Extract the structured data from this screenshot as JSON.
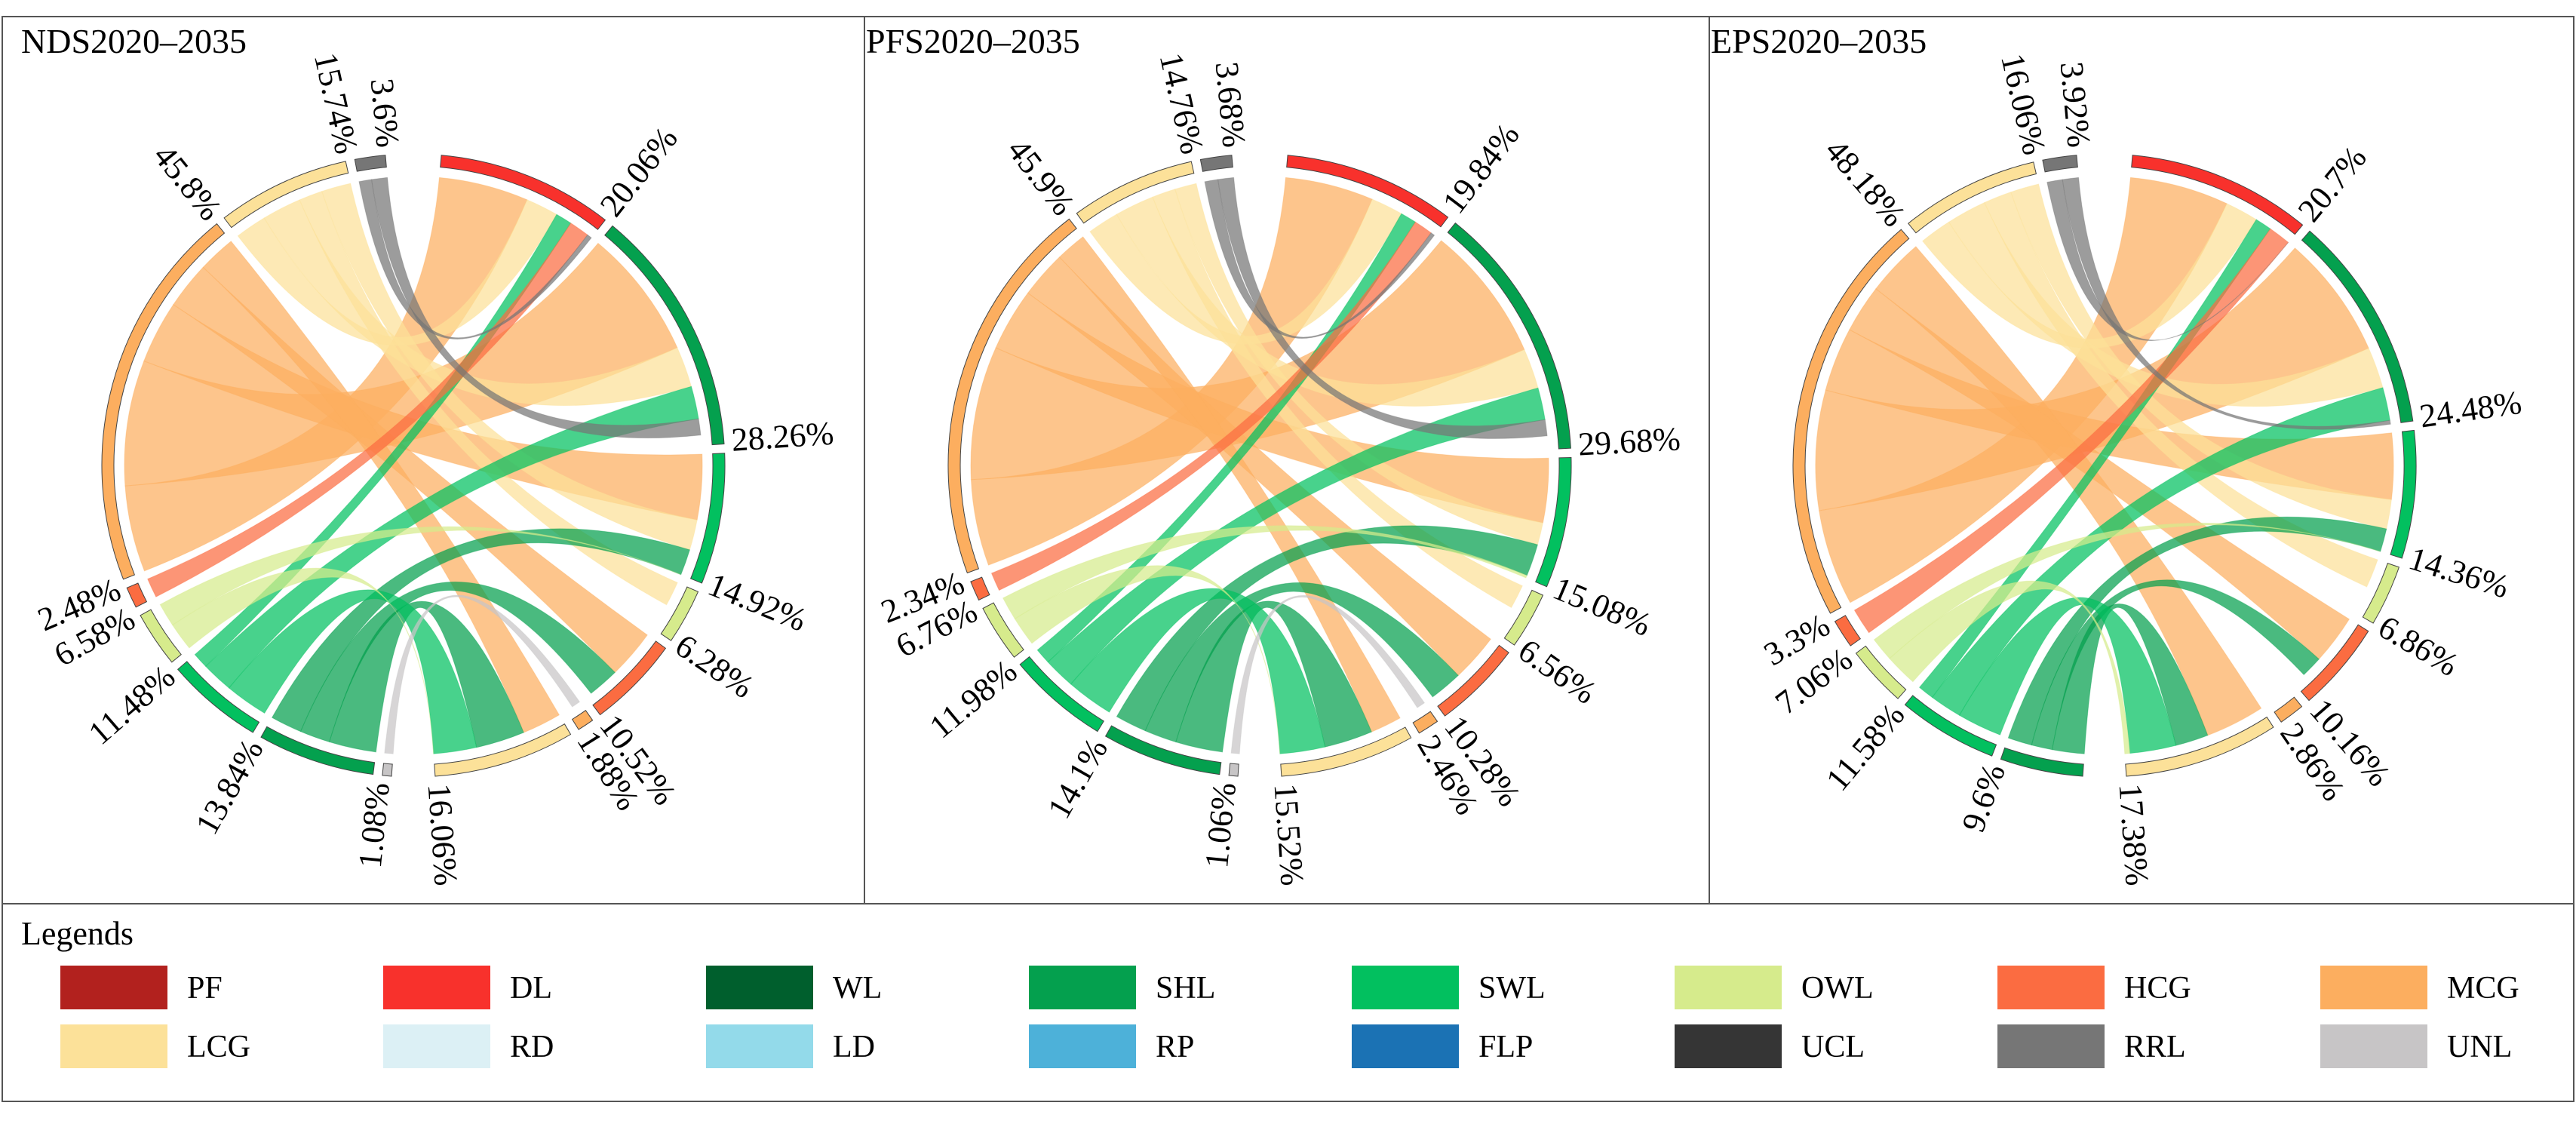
{
  "legend_title": "Legends",
  "colors": {
    "PF": "#B2211E",
    "DL": "#F8312C",
    "WL": "#005F2D",
    "SHL": "#04A04E",
    "SWL": "#02C05F",
    "OWL": "#D6EB8C",
    "HCG": "#FB6C41",
    "MCG": "#FCAE5F",
    "LCG": "#FCE199",
    "RD": "#DCF0F5",
    "LD": "#93DAEA",
    "RP": "#4DB1D9",
    "FLP": "#1B72B4",
    "UCL": "#353535",
    "RRL": "#767676",
    "UNL": "#C7C5C6"
  },
  "legend": [
    {
      "code": "PF",
      "label": "PF"
    },
    {
      "code": "DL",
      "label": "DL"
    },
    {
      "code": "WL",
      "label": "WL"
    },
    {
      "code": "SHL",
      "label": "SHL"
    },
    {
      "code": "SWL",
      "label": "SWL"
    },
    {
      "code": "OWL",
      "label": "OWL"
    },
    {
      "code": "HCG",
      "label": "HCG"
    },
    {
      "code": "MCG",
      "label": "MCG"
    },
    {
      "code": "LCG",
      "label": "LCG"
    },
    {
      "code": "RD",
      "label": "RD"
    },
    {
      "code": "LD",
      "label": "LD"
    },
    {
      "code": "RP",
      "label": "RP"
    },
    {
      "code": "FLP",
      "label": "FLP"
    },
    {
      "code": "UCL",
      "label": "UCL"
    },
    {
      "code": "RRL",
      "label": "RRL"
    },
    {
      "code": "UNL",
      "label": "UNL"
    }
  ],
  "chart_data": [
    {
      "type": "chord",
      "title": "NDS2020–2035",
      "sectors": [
        {
          "name": "DL",
          "side": "right",
          "value": 20.06,
          "label": "20.06%"
        },
        {
          "name": "SHL",
          "side": "right",
          "value": 28.26,
          "label": "28.26%"
        },
        {
          "name": "SWL",
          "side": "right",
          "value": 14.92,
          "label": "14.92%"
        },
        {
          "name": "OWL",
          "side": "right",
          "value": 6.28,
          "label": "6.28%"
        },
        {
          "name": "HCG",
          "side": "right",
          "value": 10.52,
          "label": "10.52%"
        },
        {
          "name": "MCG",
          "side": "right",
          "value": 1.88,
          "label": "1.88%"
        },
        {
          "name": "LCG",
          "side": "right",
          "value": 16.06,
          "label": "16.06%"
        },
        {
          "name": "UNL",
          "side": "left",
          "value": 1.08,
          "label": "1.08%"
        },
        {
          "name": "SHL",
          "side": "left",
          "value": 13.84,
          "label": "13.84%"
        },
        {
          "name": "SWL",
          "side": "left",
          "value": 11.48,
          "label": "11.48%"
        },
        {
          "name": "OWL",
          "side": "left",
          "value": 6.58,
          "label": "6.58%"
        },
        {
          "name": "HCG",
          "side": "left",
          "value": 2.48,
          "label": "2.48%"
        },
        {
          "name": "MCG",
          "side": "left",
          "value": 45.8,
          "label": "45.8%"
        },
        {
          "name": "LCG",
          "side": "left",
          "value": 15.74,
          "label": "15.74%"
        },
        {
          "name": "RRL",
          "side": "left",
          "value": 3.6,
          "label": "3.6%"
        }
      ],
      "flows": [
        {
          "from": "MCG",
          "to": "DL",
          "value": 11
        },
        {
          "from": "MCG",
          "to": "SHL",
          "value": 16
        },
        {
          "from": "MCG",
          "to": "SWL",
          "value": 8
        },
        {
          "from": "MCG",
          "to": "HCG",
          "value": 6
        },
        {
          "from": "MCG",
          "to": "LCG",
          "value": 4.8
        },
        {
          "from": "LCG",
          "to": "DL",
          "value": 4
        },
        {
          "from": "LCG",
          "to": "SHL",
          "value": 5
        },
        {
          "from": "LCG",
          "to": "OWL",
          "value": 3
        },
        {
          "from": "LCG",
          "to": "SWL",
          "value": 3.74
        },
        {
          "from": "SHL",
          "to": "LCG",
          "value": 6
        },
        {
          "from": "SHL",
          "to": "HCG",
          "value": 3.84
        },
        {
          "from": "SHL",
          "to": "SWL",
          "value": 4
        },
        {
          "from": "SWL",
          "to": "LCG",
          "value": 5.48
        },
        {
          "from": "SWL",
          "to": "SHL",
          "value": 4
        },
        {
          "from": "SWL",
          "to": "DL",
          "value": 2
        },
        {
          "from": "OWL",
          "to": "LCG",
          "value": 3.58
        },
        {
          "from": "OWL",
          "to": "SWL",
          "value": 3
        },
        {
          "from": "HCG",
          "to": "DL",
          "value": 2.48
        },
        {
          "from": "RRL",
          "to": "DL",
          "value": 1.6
        },
        {
          "from": "RRL",
          "to": "SHL",
          "value": 2
        },
        {
          "from": "UNL",
          "to": "MCG",
          "value": 1.08
        }
      ]
    },
    {
      "type": "chord",
      "title": "PFS2020–2035",
      "sectors": [
        {
          "name": "DL",
          "side": "right",
          "value": 19.84,
          "label": "19.84%"
        },
        {
          "name": "SHL",
          "side": "right",
          "value": 29.68,
          "label": "29.68%"
        },
        {
          "name": "SWL",
          "side": "right",
          "value": 15.08,
          "label": "15.08%"
        },
        {
          "name": "OWL",
          "side": "right",
          "value": 6.56,
          "label": "6.56%"
        },
        {
          "name": "HCG",
          "side": "right",
          "value": 10.28,
          "label": "10.28%"
        },
        {
          "name": "MCG",
          "side": "right",
          "value": 2.46,
          "label": "2.46%"
        },
        {
          "name": "LCG",
          "side": "right",
          "value": 15.52,
          "label": "15.52%"
        },
        {
          "name": "UNL",
          "side": "left",
          "value": 1.06,
          "label": "1.06%"
        },
        {
          "name": "SHL",
          "side": "left",
          "value": 14.1,
          "label": "14.1%"
        },
        {
          "name": "SWL",
          "side": "left",
          "value": 11.98,
          "label": "11.98%"
        },
        {
          "name": "OWL",
          "side": "left",
          "value": 6.76,
          "label": "6.76%"
        },
        {
          "name": "HCG",
          "side": "left",
          "value": 2.34,
          "label": "2.34%"
        },
        {
          "name": "MCG",
          "side": "left",
          "value": 45.9,
          "label": "45.9%"
        },
        {
          "name": "LCG",
          "side": "left",
          "value": 14.76,
          "label": "14.76%"
        },
        {
          "name": "RRL",
          "side": "left",
          "value": 3.68,
          "label": "3.68%"
        }
      ],
      "flows": [
        {
          "from": "MCG",
          "to": "DL",
          "value": 11
        },
        {
          "from": "MCG",
          "to": "SHL",
          "value": 17
        },
        {
          "from": "MCG",
          "to": "SWL",
          "value": 8
        },
        {
          "from": "MCG",
          "to": "HCG",
          "value": 6
        },
        {
          "from": "MCG",
          "to": "LCG",
          "value": 3.9
        },
        {
          "from": "LCG",
          "to": "DL",
          "value": 4
        },
        {
          "from": "LCG",
          "to": "SHL",
          "value": 5
        },
        {
          "from": "LCG",
          "to": "OWL",
          "value": 3
        },
        {
          "from": "LCG",
          "to": "SWL",
          "value": 2.76
        },
        {
          "from": "SHL",
          "to": "LCG",
          "value": 6
        },
        {
          "from": "SHL",
          "to": "HCG",
          "value": 4.1
        },
        {
          "from": "SHL",
          "to": "SWL",
          "value": 4
        },
        {
          "from": "SWL",
          "to": "LCG",
          "value": 5.98
        },
        {
          "from": "SWL",
          "to": "SHL",
          "value": 4
        },
        {
          "from": "SWL",
          "to": "DL",
          "value": 2
        },
        {
          "from": "OWL",
          "to": "LCG",
          "value": 3.76
        },
        {
          "from": "OWL",
          "to": "SWL",
          "value": 3
        },
        {
          "from": "HCG",
          "to": "DL",
          "value": 2.34
        },
        {
          "from": "RRL",
          "to": "DL",
          "value": 1.68
        },
        {
          "from": "RRL",
          "to": "SHL",
          "value": 2
        },
        {
          "from": "UNL",
          "to": "MCG",
          "value": 1.06
        }
      ]
    },
    {
      "type": "chord",
      "title": "EPS2020–2035",
      "sectors": [
        {
          "name": "DL",
          "side": "right",
          "value": 20.7,
          "label": "20.7%"
        },
        {
          "name": "SHL",
          "side": "right",
          "value": 24.48,
          "label": "24.48%"
        },
        {
          "name": "SWL",
          "side": "right",
          "value": 14.36,
          "label": "14.36%"
        },
        {
          "name": "OWL",
          "side": "right",
          "value": 6.86,
          "label": "6.86%"
        },
        {
          "name": "HCG",
          "side": "right",
          "value": 10.16,
          "label": "10.16%"
        },
        {
          "name": "MCG",
          "side": "right",
          "value": 2.86,
          "label": "2.86%"
        },
        {
          "name": "LCG",
          "side": "right",
          "value": 17.38,
          "label": "17.38%"
        },
        {
          "name": "SHL",
          "side": "left",
          "value": 9.6,
          "label": "9.6%"
        },
        {
          "name": "SWL",
          "side": "left",
          "value": 11.58,
          "label": "11.58%"
        },
        {
          "name": "OWL",
          "side": "left",
          "value": 7.06,
          "label": "7.06%"
        },
        {
          "name": "HCG",
          "side": "left",
          "value": 3.3,
          "label": "3.3%"
        },
        {
          "name": "MCG",
          "side": "left",
          "value": 48.18,
          "label": "48.18%"
        },
        {
          "name": "LCG",
          "side": "left",
          "value": 16.06,
          "label": "16.06%"
        },
        {
          "name": "RRL",
          "side": "left",
          "value": 3.92,
          "label": "3.92%"
        }
      ],
      "flows": [
        {
          "from": "MCG",
          "to": "DL",
          "value": 12
        },
        {
          "from": "MCG",
          "to": "SHL",
          "value": 15
        },
        {
          "from": "MCG",
          "to": "SWL",
          "value": 8
        },
        {
          "from": "MCG",
          "to": "HCG",
          "value": 6
        },
        {
          "from": "MCG",
          "to": "LCG",
          "value": 7.18
        },
        {
          "from": "LCG",
          "to": "DL",
          "value": 4
        },
        {
          "from": "LCG",
          "to": "SHL",
          "value": 5
        },
        {
          "from": "LCG",
          "to": "OWL",
          "value": 3.5
        },
        {
          "from": "LCG",
          "to": "SWL",
          "value": 3.56
        },
        {
          "from": "SHL",
          "to": "LCG",
          "value": 4
        },
        {
          "from": "SHL",
          "to": "HCG",
          "value": 2.6
        },
        {
          "from": "SHL",
          "to": "SWL",
          "value": 3
        },
        {
          "from": "SWL",
          "to": "LCG",
          "value": 5.58
        },
        {
          "from": "SWL",
          "to": "SHL",
          "value": 4
        },
        {
          "from": "SWL",
          "to": "DL",
          "value": 2
        },
        {
          "from": "OWL",
          "to": "LCG",
          "value": 4.06
        },
        {
          "from": "OWL",
          "to": "SWL",
          "value": 3
        },
        {
          "from": "HCG",
          "to": "DL",
          "value": 3.3
        },
        {
          "from": "RRL",
          "to": "DL",
          "value": 1.92
        },
        {
          "from": "RRL",
          "to": "SHL",
          "value": 2
        }
      ]
    }
  ]
}
